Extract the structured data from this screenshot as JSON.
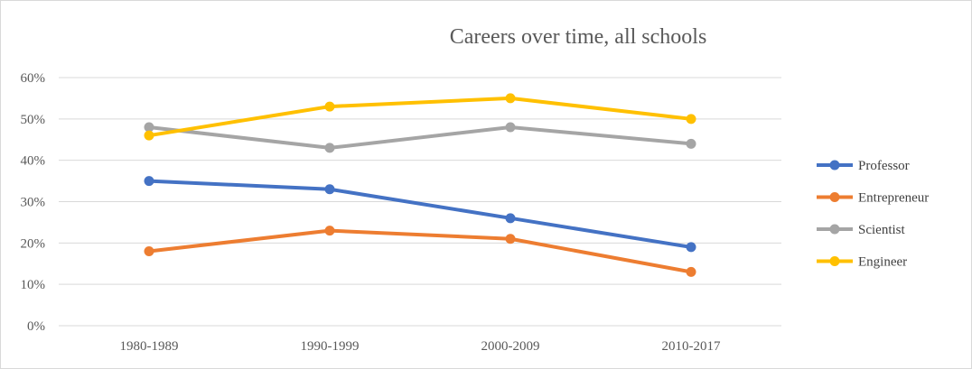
{
  "chart_data": {
    "type": "line",
    "title": "Careers over time, all schools",
    "xlabel": "",
    "ylabel": "",
    "categories": [
      "1980-1989",
      "1990-1999",
      "2000-2009",
      "2010-2017"
    ],
    "y_ticks": [
      "0%",
      "10%",
      "20%",
      "30%",
      "40%",
      "50%",
      "60%"
    ],
    "ylim": [
      0,
      60
    ],
    "y_unit": "%",
    "grid": true,
    "legend_position": "right",
    "series": [
      {
        "name": "Professor",
        "color": "#4472c4",
        "values": [
          35,
          33,
          26,
          19
        ]
      },
      {
        "name": "Entrepreneur",
        "color": "#ed7d31",
        "values": [
          18,
          23,
          21,
          13
        ]
      },
      {
        "name": "Scientist",
        "color": "#a5a5a5",
        "values": [
          48,
          43,
          48,
          44
        ]
      },
      {
        "name": "Engineer",
        "color": "#ffc000",
        "values": [
          46,
          53,
          55,
          50
        ]
      }
    ]
  }
}
